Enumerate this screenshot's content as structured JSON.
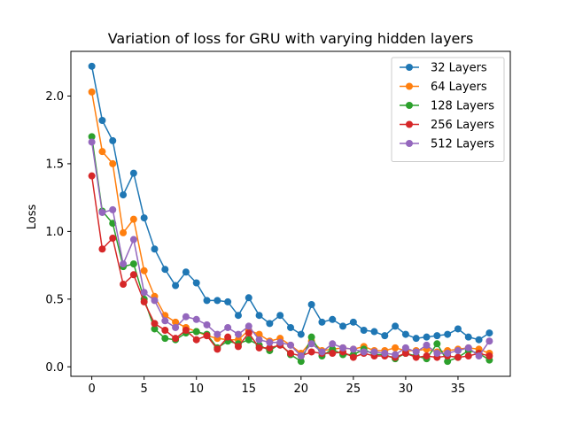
{
  "chart_data": {
    "type": "line",
    "title": "Variation of loss for GRU with varying hidden layers",
    "xlabel": "",
    "ylabel": "Loss",
    "xlim": [
      -2,
      40
    ],
    "ylim": [
      -0.07,
      2.33
    ],
    "xticks": [
      0,
      5,
      10,
      15,
      20,
      25,
      30,
      35
    ],
    "yticks": [
      0.0,
      0.5,
      1.0,
      1.5,
      2.0
    ],
    "ytick_labels": [
      "0.0",
      "0.5",
      "1.0",
      "1.5",
      "2.0"
    ],
    "grid": false,
    "legend_position": "top-right",
    "x": [
      0,
      1,
      2,
      3,
      4,
      5,
      6,
      7,
      8,
      9,
      10,
      11,
      12,
      13,
      14,
      15,
      16,
      17,
      18,
      19,
      20,
      21,
      22,
      23,
      24,
      25,
      26,
      27,
      28,
      29,
      30,
      31,
      32,
      33,
      34,
      35,
      36,
      37,
      38
    ],
    "series": [
      {
        "name": "32 Layers",
        "color": "#1f77b4",
        "values": [
          2.22,
          1.82,
          1.67,
          1.27,
          1.43,
          1.1,
          0.87,
          0.72,
          0.6,
          0.7,
          0.62,
          0.49,
          0.49,
          0.48,
          0.38,
          0.51,
          0.38,
          0.32,
          0.38,
          0.29,
          0.24,
          0.46,
          0.33,
          0.35,
          0.3,
          0.33,
          0.27,
          0.26,
          0.23,
          0.3,
          0.24,
          0.21,
          0.22,
          0.23,
          0.24,
          0.28,
          0.22,
          0.2,
          0.25
        ]
      },
      {
        "name": "64 Layers",
        "color": "#ff7f0e",
        "values": [
          2.03,
          1.59,
          1.5,
          0.99,
          1.09,
          0.71,
          0.52,
          0.38,
          0.33,
          0.29,
          0.26,
          0.23,
          0.21,
          0.2,
          0.2,
          0.27,
          0.24,
          0.19,
          0.21,
          0.16,
          0.1,
          0.19,
          0.12,
          0.13,
          0.14,
          0.13,
          0.15,
          0.12,
          0.12,
          0.14,
          0.12,
          0.12,
          0.13,
          0.11,
          0.12,
          0.13,
          0.14,
          0.13,
          0.1
        ]
      },
      {
        "name": "128 Layers",
        "color": "#2ca02c",
        "values": [
          1.7,
          1.15,
          1.06,
          0.74,
          0.76,
          0.5,
          0.28,
          0.21,
          0.2,
          0.25,
          0.26,
          0.24,
          0.14,
          0.19,
          0.17,
          0.2,
          0.16,
          0.12,
          0.17,
          0.09,
          0.04,
          0.22,
          0.08,
          0.13,
          0.09,
          0.09,
          0.13,
          0.09,
          0.09,
          0.06,
          0.1,
          0.08,
          0.06,
          0.17,
          0.04,
          0.07,
          0.12,
          0.1,
          0.05
        ]
      },
      {
        "name": "256 Layers",
        "color": "#d62728",
        "values": [
          1.41,
          0.87,
          0.95,
          0.61,
          0.68,
          0.48,
          0.32,
          0.27,
          0.21,
          0.27,
          0.2,
          0.23,
          0.13,
          0.22,
          0.15,
          0.25,
          0.14,
          0.14,
          0.16,
          0.1,
          0.08,
          0.11,
          0.1,
          0.1,
          0.11,
          0.07,
          0.1,
          0.08,
          0.08,
          0.07,
          0.1,
          0.07,
          0.08,
          0.07,
          0.08,
          0.07,
          0.08,
          0.1,
          0.08
        ]
      },
      {
        "name": "512 Layers",
        "color": "#9467bd",
        "values": [
          1.66,
          1.14,
          1.16,
          0.76,
          0.94,
          0.55,
          0.49,
          0.34,
          0.29,
          0.37,
          0.35,
          0.31,
          0.24,
          0.29,
          0.24,
          0.3,
          0.2,
          0.18,
          0.18,
          0.16,
          0.08,
          0.17,
          0.11,
          0.17,
          0.14,
          0.13,
          0.11,
          0.11,
          0.1,
          0.09,
          0.14,
          0.11,
          0.16,
          0.1,
          0.1,
          0.12,
          0.14,
          0.08,
          0.19
        ]
      }
    ]
  }
}
